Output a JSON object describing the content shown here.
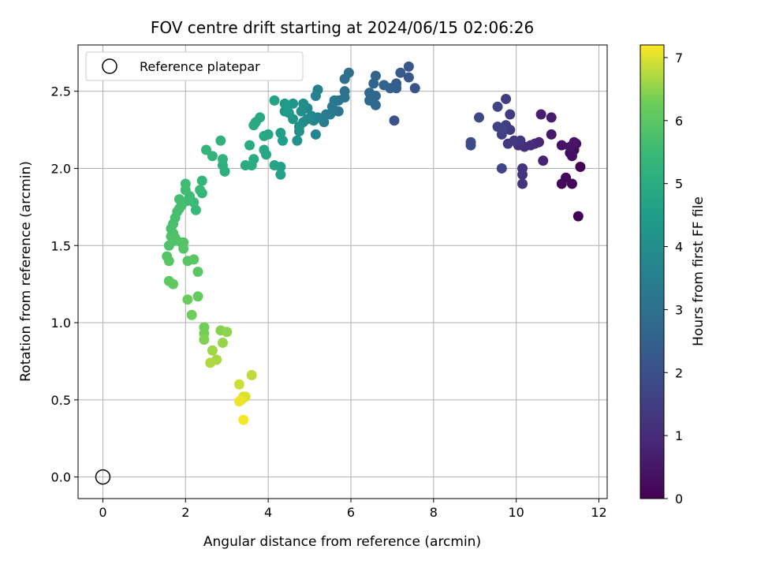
{
  "chart_data": {
    "type": "scatter",
    "title": "FOV centre drift starting at 2024/06/15 02:06:26",
    "xlabel": "Angular distance from reference (arcmin)",
    "ylabel": "Rotation from reference (arcmin)",
    "xlim": [
      -0.6,
      12.2
    ],
    "ylim": [
      -0.14,
      2.8
    ],
    "xticks": [
      0,
      2,
      4,
      6,
      8,
      10,
      12
    ],
    "yticks": [
      0.0,
      0.5,
      1.0,
      1.5,
      2.0,
      2.5
    ],
    "grid": true,
    "legend": {
      "entries": [
        "Reference platepar"
      ],
      "placement": "upper-left"
    },
    "reference": {
      "x": 0,
      "y": 0
    },
    "colorbar": {
      "label": "Hours from first FF file",
      "range": [
        0,
        7.2
      ],
      "ticks": [
        0,
        1,
        2,
        3,
        4,
        5,
        6,
        7
      ],
      "colormap": "viridis"
    },
    "points": [
      [
        11.5,
        1.69,
        0.02
      ],
      [
        11.55,
        2.01,
        0.06
      ],
      [
        11.35,
        1.9,
        0.1
      ],
      [
        11.1,
        1.9,
        0.14
      ],
      [
        11.2,
        1.94,
        0.18
      ],
      [
        11.4,
        2.12,
        0.22
      ],
      [
        11.3,
        2.1,
        0.26
      ],
      [
        11.45,
        2.16,
        0.3
      ],
      [
        11.35,
        2.08,
        0.34
      ],
      [
        11.1,
        2.15,
        0.38
      ],
      [
        11.3,
        2.14,
        0.42
      ],
      [
        11.4,
        2.17,
        0.46
      ],
      [
        10.85,
        2.22,
        0.55
      ],
      [
        10.85,
        2.33,
        0.62
      ],
      [
        10.6,
        2.35,
        0.7
      ],
      [
        10.65,
        2.05,
        0.78
      ],
      [
        10.55,
        2.17,
        0.85
      ],
      [
        10.45,
        2.16,
        0.92
      ],
      [
        10.35,
        2.15,
        1.0
      ],
      [
        10.2,
        2.14,
        1.06
      ],
      [
        10.05,
        2.15,
        1.12
      ],
      [
        10.15,
        2.0,
        1.16
      ],
      [
        10.15,
        1.96,
        1.2
      ],
      [
        10.15,
        1.9,
        1.24
      ],
      [
        10.1,
        2.18,
        1.28
      ],
      [
        9.95,
        2.18,
        1.32
      ],
      [
        9.8,
        2.16,
        1.36
      ],
      [
        9.85,
        2.25,
        1.4
      ],
      [
        9.85,
        2.35,
        1.44
      ],
      [
        9.75,
        2.45,
        1.48
      ],
      [
        9.75,
        2.28,
        1.52
      ],
      [
        9.65,
        2.22,
        1.56
      ],
      [
        9.55,
        2.27,
        1.6
      ],
      [
        9.65,
        2.26,
        1.64
      ],
      [
        9.55,
        2.4,
        1.68
      ],
      [
        9.65,
        2.0,
        1.72
      ],
      [
        9.1,
        2.33,
        1.78
      ],
      [
        8.9,
        2.15,
        1.84
      ],
      [
        8.9,
        2.17,
        1.88
      ],
      [
        7.05,
        2.31,
        2.05
      ],
      [
        7.55,
        2.52,
        2.12
      ],
      [
        7.4,
        2.59,
        2.18
      ],
      [
        7.4,
        2.66,
        2.24
      ],
      [
        7.2,
        2.62,
        2.3
      ],
      [
        7.1,
        2.55,
        2.36
      ],
      [
        7.1,
        2.52,
        2.42
      ],
      [
        6.95,
        2.52,
        2.48
      ],
      [
        6.8,
        2.54,
        2.54
      ],
      [
        6.6,
        2.6,
        2.58
      ],
      [
        6.55,
        2.55,
        2.62
      ],
      [
        6.6,
        2.47,
        2.66
      ],
      [
        6.45,
        2.49,
        2.7
      ],
      [
        6.6,
        2.41,
        2.74
      ],
      [
        6.45,
        2.44,
        2.78
      ],
      [
        5.95,
        2.62,
        2.95
      ],
      [
        5.85,
        2.58,
        3.0
      ],
      [
        5.85,
        2.5,
        3.05
      ],
      [
        5.85,
        2.46,
        3.1
      ],
      [
        5.7,
        2.44,
        3.15
      ],
      [
        5.7,
        2.37,
        3.2
      ],
      [
        5.6,
        2.44,
        3.25
      ],
      [
        5.55,
        2.4,
        3.3
      ],
      [
        5.5,
        2.35,
        3.35
      ],
      [
        5.4,
        2.35,
        3.4
      ],
      [
        5.35,
        2.3,
        3.45
      ],
      [
        5.2,
        2.51,
        3.5
      ],
      [
        5.15,
        2.47,
        3.55
      ],
      [
        5.2,
        2.33,
        3.6
      ],
      [
        5.1,
        2.31,
        3.65
      ],
      [
        5.15,
        2.22,
        3.7
      ],
      [
        5.05,
        2.34,
        3.75
      ],
      [
        4.95,
        2.39,
        3.8
      ],
      [
        4.95,
        2.32,
        3.85
      ],
      [
        4.85,
        2.3,
        3.9
      ],
      [
        4.85,
        2.42,
        3.95
      ],
      [
        4.8,
        2.37,
        4.0
      ],
      [
        4.75,
        2.27,
        4.05
      ],
      [
        4.75,
        2.24,
        4.1
      ],
      [
        4.7,
        2.18,
        4.15
      ],
      [
        4.6,
        2.42,
        4.2
      ],
      [
        4.6,
        2.32,
        4.25
      ],
      [
        4.5,
        2.36,
        4.3
      ],
      [
        4.45,
        2.4,
        4.35
      ],
      [
        4.4,
        2.37,
        4.4
      ],
      [
        4.4,
        2.42,
        4.45
      ],
      [
        4.35,
        2.18,
        4.5
      ],
      [
        4.3,
        2.23,
        4.55
      ],
      [
        4.3,
        2.01,
        4.6
      ],
      [
        4.3,
        1.96,
        4.65
      ],
      [
        4.15,
        2.44,
        4.7
      ],
      [
        4.15,
        2.02,
        4.75
      ],
      [
        4.0,
        2.22,
        4.8
      ],
      [
        3.95,
        2.09,
        4.82
      ],
      [
        3.9,
        2.21,
        4.84
      ],
      [
        3.9,
        2.12,
        4.86
      ],
      [
        3.8,
        2.33,
        4.88
      ],
      [
        3.7,
        2.3,
        4.9
      ],
      [
        3.65,
        2.28,
        4.92
      ],
      [
        3.65,
        2.06,
        4.94
      ],
      [
        3.6,
        2.02,
        4.96
      ],
      [
        3.55,
        2.15,
        4.98
      ],
      [
        3.45,
        2.02,
        5.0
      ],
      [
        2.95,
        1.98,
        5.1
      ],
      [
        2.9,
        2.02,
        5.14
      ],
      [
        2.9,
        2.06,
        5.18
      ],
      [
        2.85,
        2.18,
        5.22
      ],
      [
        2.65,
        2.08,
        5.26
      ],
      [
        2.5,
        2.12,
        5.3
      ],
      [
        2.4,
        1.84,
        5.34
      ],
      [
        2.4,
        1.92,
        5.38
      ],
      [
        2.35,
        1.86,
        5.42
      ],
      [
        2.25,
        1.73,
        5.46
      ],
      [
        2.2,
        1.78,
        5.5
      ],
      [
        2.1,
        1.82,
        5.52
      ],
      [
        2.05,
        1.79,
        5.54
      ],
      [
        2.0,
        1.86,
        5.56
      ],
      [
        2.0,
        1.9,
        5.58
      ],
      [
        1.95,
        1.78,
        5.6
      ],
      [
        1.9,
        1.76,
        5.62
      ],
      [
        1.85,
        1.8,
        5.64
      ],
      [
        1.85,
        1.74,
        5.66
      ],
      [
        1.8,
        1.72,
        5.68
      ],
      [
        1.75,
        1.68,
        5.7
      ],
      [
        1.7,
        1.64,
        5.72
      ],
      [
        1.7,
        1.58,
        5.74
      ],
      [
        1.65,
        1.61,
        5.76
      ],
      [
        1.65,
        1.56,
        5.78
      ],
      [
        1.6,
        1.5,
        5.8
      ],
      [
        1.7,
        1.53,
        5.82
      ],
      [
        1.75,
        1.55,
        5.84
      ],
      [
        1.9,
        1.52,
        5.86
      ],
      [
        1.95,
        1.52,
        5.88
      ],
      [
        1.95,
        1.48,
        5.9
      ],
      [
        1.55,
        1.43,
        5.92
      ],
      [
        1.6,
        1.4,
        5.94
      ],
      [
        2.05,
        1.4,
        5.96
      ],
      [
        2.2,
        1.41,
        5.98
      ],
      [
        2.3,
        1.33,
        6.0
      ],
      [
        1.6,
        1.27,
        6.05
      ],
      [
        1.7,
        1.25,
        6.1
      ],
      [
        2.3,
        1.17,
        6.15
      ],
      [
        2.05,
        1.15,
        6.2
      ],
      [
        2.15,
        1.05,
        6.25
      ],
      [
        2.45,
        0.97,
        6.3
      ],
      [
        2.45,
        0.93,
        6.35
      ],
      [
        2.45,
        0.89,
        6.4
      ],
      [
        2.85,
        0.95,
        6.45
      ],
      [
        3.0,
        0.94,
        6.5
      ],
      [
        2.9,
        0.87,
        6.55
      ],
      [
        2.65,
        0.82,
        6.6
      ],
      [
        2.75,
        0.76,
        6.65
      ],
      [
        2.6,
        0.74,
        6.7
      ],
      [
        3.6,
        0.66,
        6.8
      ],
      [
        3.3,
        0.6,
        6.9
      ],
      [
        3.4,
        0.52,
        6.95
      ],
      [
        3.45,
        0.52,
        7.0
      ],
      [
        3.35,
        0.5,
        7.05
      ],
      [
        3.3,
        0.49,
        7.1
      ],
      [
        3.4,
        0.37,
        7.15
      ]
    ]
  }
}
